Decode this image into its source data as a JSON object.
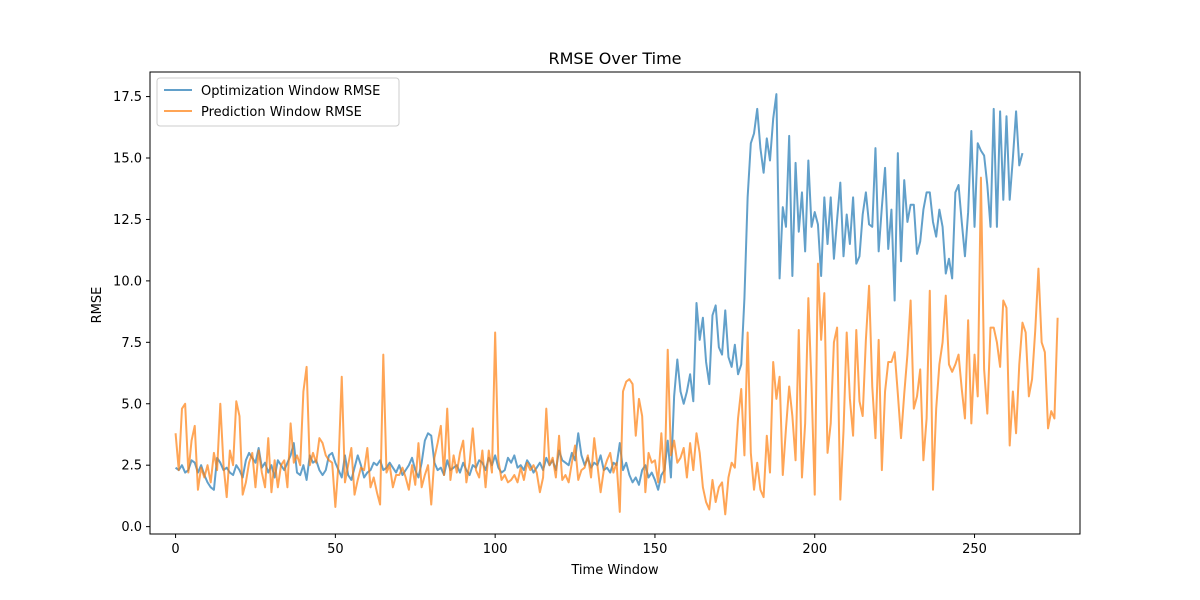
{
  "chart_data": {
    "type": "line",
    "title": "RMSE Over Time",
    "xlabel": "Time Window",
    "ylabel": "RMSE",
    "xlim": [
      -8,
      283
    ],
    "ylim": [
      -0.3,
      18.5
    ],
    "x_ticks": [
      0,
      50,
      100,
      150,
      200,
      250
    ],
    "y_ticks": [
      0.0,
      2.5,
      5.0,
      7.5,
      10.0,
      12.5,
      15.0,
      17.5
    ],
    "x_tick_labels": [
      "0",
      "50",
      "100",
      "150",
      "200",
      "250"
    ],
    "y_tick_labels": [
      "0.0",
      "2.5",
      "5.0",
      "7.5",
      "10.0",
      "12.5",
      "15.0",
      "17.5"
    ],
    "legend_position": "upper-left",
    "grid": false,
    "series": [
      {
        "name": "Optimization Window RMSE",
        "color": "#1f77b4",
        "alpha": 0.7,
        "x_start": 0,
        "values": [
          2.4,
          2.3,
          2.5,
          2.2,
          2.3,
          2.7,
          2.6,
          2.2,
          2.5,
          2.1,
          1.8,
          1.6,
          1.5,
          2.8,
          2.6,
          2.3,
          2.4,
          2.2,
          2.1,
          2.5,
          2.3,
          2.0,
          2.7,
          3.0,
          2.8,
          2.6,
          3.2,
          2.4,
          2.6,
          2.2,
          2.5,
          2.0,
          2.7,
          2.5,
          2.3,
          2.6,
          2.9,
          3.4,
          2.2,
          2.1,
          2.5,
          1.9,
          2.9,
          2.6,
          2.7,
          2.3,
          2.1,
          2.3,
          2.9,
          3.0,
          2.6,
          2.3,
          2.0,
          2.9,
          2.1,
          1.9,
          2.4,
          2.9,
          2.5,
          2.0,
          2.2,
          2.3,
          2.6,
          2.5,
          2.7,
          2.3,
          2.4,
          2.6,
          2.4,
          2.2,
          2.5,
          2.1,
          2.3,
          2.5,
          2.8,
          2.3,
          2.0,
          2.6,
          3.5,
          3.8,
          3.7,
          2.6,
          2.3,
          2.4,
          2.1,
          2.7,
          2.3,
          2.4,
          2.5,
          2.2,
          2.6,
          2.3,
          2.1,
          2.5,
          2.4,
          2.7,
          2.6,
          2.3,
          2.8,
          2.5,
          2.9,
          2.4,
          2.2,
          2.3,
          2.8,
          2.6,
          2.9,
          2.4,
          2.5,
          2.3,
          2.7,
          2.5,
          2.2,
          2.4,
          2.6,
          2.3,
          2.8,
          2.5,
          2.7,
          2.3,
          3.1,
          2.7,
          2.6,
          2.5,
          3.0,
          2.7,
          3.8,
          2.9,
          2.5,
          2.8,
          2.4,
          2.6,
          2.5,
          2.9,
          2.3,
          2.4,
          2.2,
          2.6,
          2.5,
          3.4,
          2.3,
          2.6,
          2.1,
          1.8,
          2.0,
          1.7,
          2.3,
          2.5,
          2.0,
          2.2,
          1.9,
          1.5,
          2.1,
          2.3,
          3.5,
          2.0,
          5.3,
          6.8,
          5.5,
          5.0,
          5.5,
          6.2,
          5.1,
          9.1,
          7.6,
          8.5,
          6.7,
          5.8,
          8.6,
          9.0,
          7.3,
          7.0,
          8.8,
          6.9,
          6.5,
          7.4,
          6.2,
          6.6,
          9.3,
          13.4,
          15.6,
          16.0,
          17.0,
          15.4,
          14.4,
          15.8,
          14.9,
          16.6,
          17.6,
          10.1,
          13.0,
          12.2,
          15.9,
          10.2,
          14.8,
          12.0,
          13.6,
          11.2,
          14.9,
          12.2,
          12.8,
          12.3,
          10.2,
          13.4,
          11.5,
          13.4,
          10.9,
          12.5,
          14.0,
          11.0,
          12.7,
          11.5,
          13.4,
          10.7,
          11.0,
          12.7,
          13.6,
          12.3,
          12.2,
          15.4,
          11.2,
          13.0,
          14.6,
          11.3,
          12.9,
          9.2,
          15.2,
          10.8,
          14.1,
          12.4,
          13.1,
          13.1,
          11.1,
          11.6,
          12.9,
          13.6,
          13.6,
          12.4,
          11.8,
          12.9,
          12.2,
          10.3,
          10.9,
          10.1,
          13.6,
          13.9,
          12.4,
          11.0,
          12.8,
          16.1,
          12.2,
          15.6,
          15.3,
          15.1,
          13.9,
          12.2,
          17.0,
          12.2,
          16.9,
          13.3,
          16.7,
          13.3,
          15.0,
          16.9,
          14.7,
          15.2
        ]
      },
      {
        "name": "Prediction Window RMSE",
        "color": "#ff7f0e",
        "alpha": 0.7,
        "x_start": 0,
        "values": [
          3.8,
          2.3,
          4.8,
          5.0,
          2.2,
          3.5,
          4.1,
          1.5,
          2.4,
          2.0,
          2.5,
          1.8,
          3.0,
          2.3,
          5.0,
          2.5,
          1.2,
          3.1,
          2.5,
          5.1,
          4.5,
          1.3,
          1.8,
          2.6,
          3.0,
          1.6,
          3.1,
          2.2,
          1.6,
          3.6,
          1.4,
          2.7,
          1.6,
          2.5,
          2.7,
          1.6,
          4.2,
          2.6,
          2.9,
          2.5,
          5.5,
          6.5,
          2.5,
          3.0,
          2.6,
          3.6,
          3.4,
          2.9,
          2.7,
          2.6,
          0.8,
          2.6,
          6.1,
          1.8,
          2.5,
          3.2,
          1.3,
          1.9,
          2.4,
          2.3,
          3.2,
          1.6,
          2.0,
          1.4,
          0.9,
          7.0,
          2.2,
          2.5,
          1.6,
          2.1,
          2.1,
          2.4,
          2.0,
          1.5,
          2.5,
          1.7,
          3.4,
          1.6,
          2.1,
          2.5,
          0.9,
          2.8,
          3.4,
          4.1,
          2.1,
          4.8,
          1.9,
          2.9,
          2.2,
          3.0,
          3.5,
          1.8,
          2.6,
          4.0,
          2.3,
          2.0,
          3.1,
          1.6,
          3.1,
          2.2,
          7.9,
          2.7,
          1.9,
          2.1,
          1.8,
          1.9,
          2.1,
          1.8,
          2.4,
          1.9,
          2.6,
          2.3,
          2.5,
          2.2,
          1.4,
          2.0,
          4.8,
          2.5,
          2.8,
          2.0,
          3.7,
          1.9,
          2.1,
          1.8,
          2.6,
          3.3,
          1.9,
          2.3,
          2.4,
          2.9,
          2.0,
          3.6,
          2.5,
          1.4,
          2.3,
          2.7,
          3.0,
          2.2,
          2.6,
          0.6,
          5.5,
          5.9,
          6.0,
          5.8,
          3.7,
          5.2,
          4.5,
          1.4,
          3.0,
          2.6,
          2.7,
          1.8,
          3.8,
          1.8,
          7.2,
          2.9,
          3.5,
          2.6,
          2.8,
          3.2,
          2.0,
          3.4,
          2.3,
          3.8,
          3.0,
          1.6,
          1.0,
          0.7,
          1.9,
          1.0,
          1.6,
          1.8,
          0.5,
          2.0,
          2.6,
          2.4,
          4.4,
          5.6,
          2.9,
          7.9,
          3.0,
          1.5,
          2.6,
          1.5,
          1.2,
          3.7,
          2.2,
          6.7,
          5.2,
          6.1,
          2.1,
          4.0,
          5.7,
          4.5,
          2.7,
          8.0,
          2.0,
          4.2,
          9.3,
          5.7,
          1.3,
          10.7,
          7.6,
          9.5,
          3.0,
          4.2,
          7.5,
          8.1,
          1.1,
          3.9,
          7.9,
          5.2,
          3.7,
          8.0,
          5.1,
          4.5,
          7.6,
          9.8,
          5.7,
          3.6,
          7.6,
          2.3,
          5.5,
          6.7,
          6.7,
          7.1,
          5.4,
          3.6,
          5.4,
          7.0,
          9.2,
          4.8,
          5.3,
          6.4,
          2.7,
          4.4,
          9.6,
          1.5,
          4.8,
          6.6,
          7.5,
          9.4,
          6.6,
          6.3,
          6.6,
          7.0,
          5.6,
          4.4,
          8.4,
          4.2,
          7.0,
          5.3,
          14.2,
          6.4,
          4.6,
          8.1,
          8.1,
          7.5,
          6.5,
          9.2,
          8.9,
          3.3,
          5.5,
          3.8,
          6.6,
          8.3,
          7.9,
          5.3,
          6.0,
          8.0,
          10.5,
          7.5,
          7.1,
          4.0,
          4.7,
          4.4,
          8.5
        ]
      }
    ]
  }
}
